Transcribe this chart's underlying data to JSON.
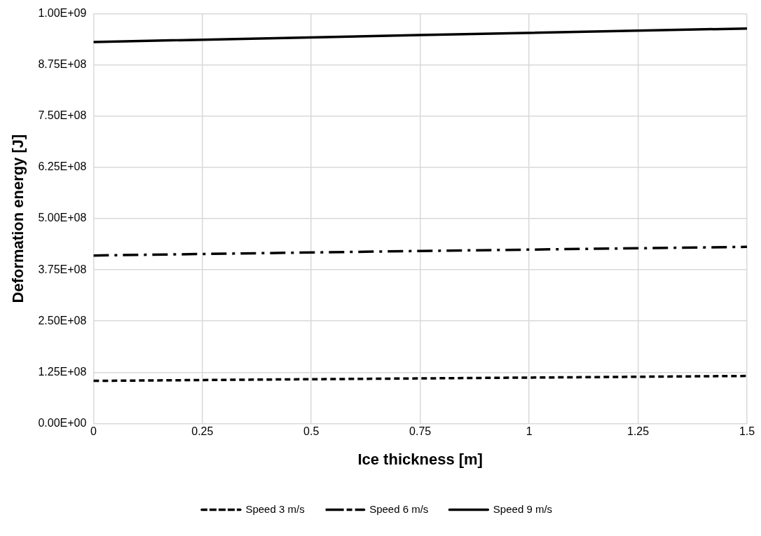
{
  "chart_data": {
    "type": "line",
    "xlabel": "Ice thickness [m]",
    "ylabel": "Deformation energy [J]",
    "xlim": [
      0,
      1.5
    ],
    "xticks": [
      0,
      0.25,
      0.5,
      0.75,
      1,
      1.25,
      1.5
    ],
    "ylim": [
      0,
      1000000000
    ],
    "yticks": [
      {
        "value": 0,
        "label": "0.00E+00"
      },
      {
        "value": 125000000,
        "label": "1.25E+08"
      },
      {
        "value": 250000000,
        "label": "2.50E+08"
      },
      {
        "value": 375000000,
        "label": "3.75E+08"
      },
      {
        "value": 500000000,
        "label": "5.00E+08"
      },
      {
        "value": 625000000,
        "label": "6.25E+08"
      },
      {
        "value": 750000000,
        "label": "7.50E+08"
      },
      {
        "value": 875000000,
        "label": "8.75E+08"
      },
      {
        "value": 1000000000,
        "label": "1.00E+09"
      }
    ],
    "grid": true,
    "legend": "bottom",
    "marker": "none",
    "series": [
      {
        "name": "Speed 3 m/s",
        "color": "#000000",
        "line_style": "dashed",
        "x": [
          0,
          0.75,
          1.5
        ],
        "values": [
          104000000,
          110000000,
          116000000
        ]
      },
      {
        "name": "Speed 6 m/s",
        "color": "#000000",
        "line_style": "dashdot",
        "x": [
          0,
          0.75,
          1.5
        ],
        "values": [
          410000000,
          421000000,
          431000000
        ]
      },
      {
        "name": "Speed 9 m/s",
        "color": "#000000",
        "line_style": "solid",
        "x": [
          0,
          0.75,
          1.5
        ],
        "values": [
          931000000,
          948000000,
          964000000
        ]
      }
    ]
  }
}
